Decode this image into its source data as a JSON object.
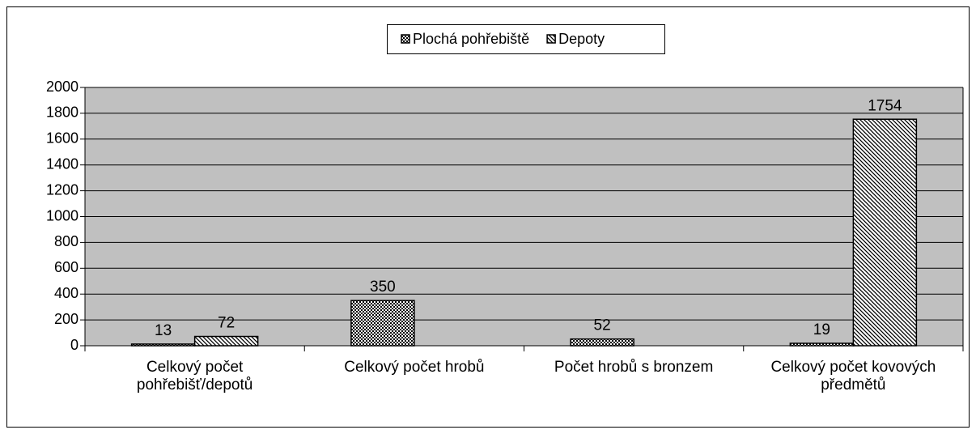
{
  "chart_data": {
    "type": "bar",
    "categories": [
      "Celkový počet pohřebišť/depotů",
      "Celkový počet hrobů",
      "Počet hrobů s bronzem",
      "Celkový počet kovových předmětů"
    ],
    "series": [
      {
        "name": "Plochá pohřebiště",
        "color": "#000000",
        "pattern": "dots",
        "values": [
          13,
          350,
          52,
          19
        ]
      },
      {
        "name": "Depoty",
        "color": "#000000",
        "pattern": "hatch",
        "values": [
          72,
          null,
          null,
          1754
        ]
      }
    ],
    "ylim": [
      0,
      2000
    ],
    "yticks": [
      0,
      200,
      400,
      600,
      800,
      1000,
      1200,
      1400,
      1600,
      1800,
      2000
    ],
    "grid": true,
    "legend": "top"
  }
}
